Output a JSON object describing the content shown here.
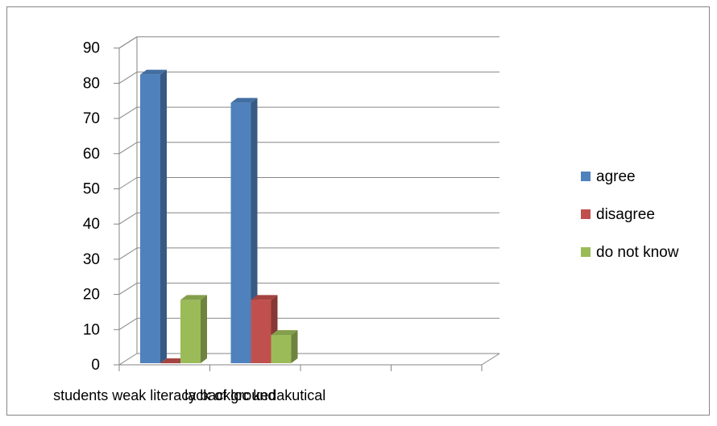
{
  "chart_data": {
    "type": "bar",
    "style": "3d-clustered-column",
    "categories": [
      "students weak literacy background",
      "lack of loc kedakutical"
    ],
    "series": [
      {
        "name": "agree",
        "color": "#4F81BD",
        "values": [
          82,
          74
        ]
      },
      {
        "name": "disagree",
        "color": "#C0504D",
        "values": [
          0,
          18
        ]
      },
      {
        "name": "do not know",
        "color": "#9BBB59",
        "values": [
          18,
          8
        ]
      }
    ],
    "y_ticks": [
      "0",
      "10",
      "20",
      "30",
      "40",
      "50",
      "60",
      "70",
      "80",
      "90"
    ],
    "ylim": [
      0,
      90
    ],
    "grid": true,
    "legend_position": "right",
    "title": "",
    "xlabel": "",
    "ylabel": ""
  }
}
